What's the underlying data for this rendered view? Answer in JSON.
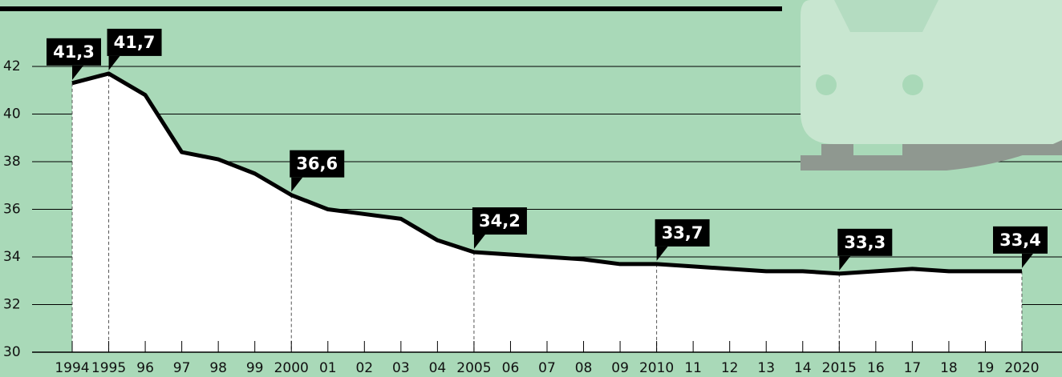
{
  "chart_data": {
    "type": "line",
    "categories": [
      "1994",
      "1995",
      "96",
      "97",
      "98",
      "99",
      "2000",
      "01",
      "02",
      "03",
      "04",
      "2005",
      "06",
      "07",
      "08",
      "09",
      "2010",
      "11",
      "12",
      "13",
      "14",
      "2015",
      "16",
      "17",
      "18",
      "19",
      "2020"
    ],
    "series": [
      {
        "color": "#000000",
        "values": [
          41.3,
          41.7,
          40.8,
          38.4,
          38.1,
          37.5,
          36.6,
          36.0,
          35.8,
          35.6,
          34.7,
          34.2,
          34.1,
          34.0,
          33.9,
          33.7,
          33.7,
          33.6,
          33.5,
          33.4,
          33.4,
          33.3,
          33.4,
          33.5,
          33.4,
          33.4,
          33.4
        ],
        "value_labels": [
          "41,3",
          "41,7",
          null,
          null,
          null,
          null,
          "36,6",
          null,
          null,
          null,
          null,
          "34,2",
          null,
          null,
          null,
          null,
          "33,7",
          null,
          null,
          null,
          null,
          "33,3",
          null,
          null,
          null,
          null,
          "33,4"
        ]
      }
    ],
    "ylim": [
      30,
      42
    ],
    "yticks": [
      30,
      32,
      34,
      36,
      38,
      40,
      42
    ],
    "grid": true
  }
}
